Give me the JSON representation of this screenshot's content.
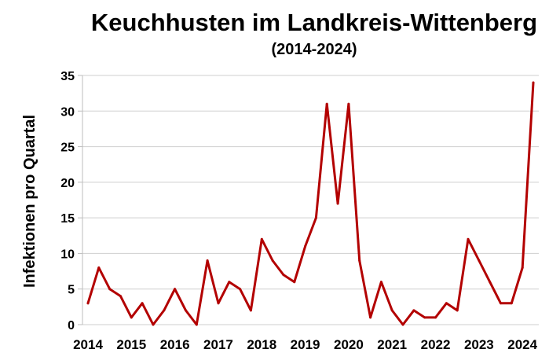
{
  "chart_data": {
    "type": "line",
    "title": "Keuchhusten im Landkreis-Wittenberg",
    "subtitle": "(2014-2024)",
    "xlabel": "",
    "ylabel": "Infektionen pro Quartal",
    "ylim": [
      0,
      35
    ],
    "yticks": [
      0,
      5,
      10,
      15,
      20,
      25,
      30,
      35
    ],
    "xlim": [
      2014,
      2024.25
    ],
    "xticks": [
      "2014",
      "2015",
      "2016",
      "2017",
      "2018",
      "2019",
      "2020",
      "2021",
      "2022",
      "2023",
      "2024"
    ],
    "grid": true,
    "line_color": "#b30000",
    "series": [
      {
        "x": [
          2014.0,
          2014.25,
          2014.5,
          2014.75,
          2015.0,
          2015.25,
          2015.5,
          2015.75,
          2016.0,
          2016.25,
          2016.5,
          2016.75,
          2017.0,
          2017.25,
          2017.5,
          2017.75,
          2018.0,
          2018.25,
          2018.5,
          2018.75,
          2019.0,
          2019.25,
          2019.5,
          2019.75,
          2020.0,
          2020.25,
          2020.5,
          2020.75,
          2021.0,
          2021.25,
          2021.5,
          2021.75,
          2022.0,
          2022.25,
          2022.5,
          2022.75,
          2023.0,
          2023.25,
          2023.5,
          2023.75,
          2024.0,
          2024.25
        ],
        "values": [
          3,
          8,
          5,
          4,
          1,
          3,
          0,
          2,
          5,
          2,
          0,
          9,
          3,
          6,
          5,
          2,
          12,
          9,
          7,
          6,
          11,
          15,
          31,
          17,
          31,
          9,
          1,
          6,
          2,
          0,
          2,
          1,
          1,
          3,
          2,
          12,
          9,
          6,
          3,
          3,
          8,
          34
        ]
      }
    ]
  }
}
